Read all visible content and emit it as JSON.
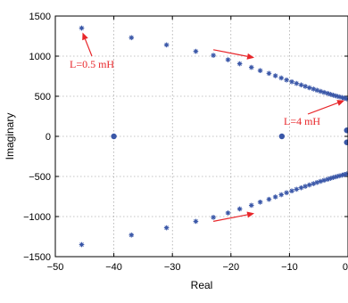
{
  "chart_data": {
    "type": "scatter",
    "title": "",
    "xlabel": "Real",
    "ylabel": "Imaginary",
    "xlim": [
      -50,
      0
    ],
    "ylim": [
      -1500,
      1500
    ],
    "xticks": [
      -50,
      -40,
      -30,
      -20,
      -10,
      0
    ],
    "yticks": [
      1500,
      1000,
      500,
      0,
      -500,
      -1000,
      -1500
    ],
    "xtick_labels": [
      "−50",
      "−40",
      "−30",
      "−20",
      "−10",
      "0"
    ],
    "ytick_labels": [
      "1500",
      "1000",
      "500",
      "0",
      "−500",
      "−1000",
      "−1500"
    ],
    "grid": true,
    "marker_color": "#3a57a8",
    "annotation_color": "#e8262a",
    "series": [
      {
        "marker": "star",
        "points": [
          [
            -45.5,
            1350
          ],
          [
            -37,
            1230
          ],
          [
            -31,
            1140
          ],
          [
            -26,
            1060
          ],
          [
            -23,
            1010
          ],
          [
            -20.5,
            955
          ],
          [
            -18.5,
            905
          ],
          [
            -16.5,
            860
          ],
          [
            -15,
            820
          ],
          [
            -13.5,
            785
          ],
          [
            -12.4,
            755
          ],
          [
            -11.4,
            728
          ],
          [
            -10.5,
            703
          ],
          [
            -9.6,
            680
          ],
          [
            -8.8,
            660
          ],
          [
            -8.0,
            641
          ],
          [
            -7.3,
            623
          ],
          [
            -6.6,
            606
          ],
          [
            -5.9,
            590
          ],
          [
            -5.3,
            575
          ],
          [
            -4.7,
            561
          ],
          [
            -4.1,
            548
          ],
          [
            -3.5,
            536
          ],
          [
            -3.0,
            524
          ],
          [
            -2.5,
            513
          ],
          [
            -2.0,
            503
          ],
          [
            -1.5,
            493
          ],
          [
            -1.0,
            484
          ],
          [
            -0.6,
            476
          ],
          [
            -0.2,
            468
          ],
          [
            -45.5,
            -1350
          ],
          [
            -37,
            -1230
          ],
          [
            -31,
            -1140
          ],
          [
            -26,
            -1060
          ],
          [
            -23,
            -1010
          ],
          [
            -20.5,
            -955
          ],
          [
            -18.5,
            -905
          ],
          [
            -16.5,
            -860
          ],
          [
            -15,
            -820
          ],
          [
            -13.5,
            -785
          ],
          [
            -12.4,
            -755
          ],
          [
            -11.4,
            -728
          ],
          [
            -10.5,
            -703
          ],
          [
            -9.6,
            -680
          ],
          [
            -8.8,
            -660
          ],
          [
            -8.0,
            -641
          ],
          [
            -7.3,
            -623
          ],
          [
            -6.6,
            -606
          ],
          [
            -5.9,
            -590
          ],
          [
            -5.3,
            -575
          ],
          [
            -4.7,
            -561
          ],
          [
            -4.1,
            -548
          ],
          [
            -3.5,
            -536
          ],
          [
            -3.0,
            -524
          ],
          [
            -2.5,
            -513
          ],
          [
            -2.0,
            -503
          ],
          [
            -1.5,
            -493
          ],
          [
            -1.0,
            -484
          ],
          [
            -0.6,
            -476
          ],
          [
            -0.2,
            -468
          ]
        ]
      },
      {
        "marker": "dot",
        "points": [
          [
            -40,
            0
          ],
          [
            -11.3,
            0
          ],
          [
            -0.2,
            75
          ],
          [
            -0.2,
            -75
          ]
        ]
      }
    ],
    "annotations": [
      {
        "text": "L=0.5 mH",
        "at": [
          -45.5,
          1350
        ]
      },
      {
        "text": "L=4 mH",
        "at": [
          -0.3,
          470
        ]
      }
    ],
    "direction_arrows": [
      {
        "from": [
          -23,
          1080
        ],
        "to": [
          -16,
          980
        ]
      },
      {
        "from": [
          -23,
          -1060
        ],
        "to": [
          -16,
          -960
        ]
      }
    ]
  }
}
